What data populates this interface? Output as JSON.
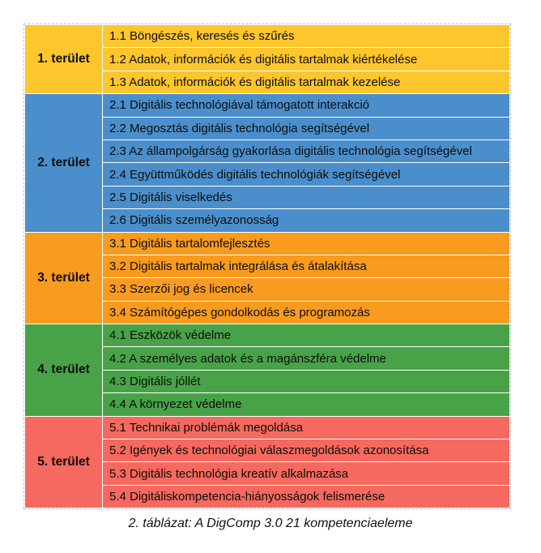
{
  "table": {
    "areas": [
      {
        "label": "1. terület",
        "color": "#FDC62D",
        "rows": [
          "1.1 Böngészés, keresés és szűrés",
          "1.2 Adatok, információk és digitális tartalmak kiértékelése",
          "1.3 Adatok, információk és digitális tartalmak kezelése"
        ]
      },
      {
        "label": "2. terület",
        "color": "#4A8FCC",
        "rows": [
          "2.1 Digitális technológiával támogatott interakció",
          "2.2 Megosztás digitális technológia segítségével",
          "2.3 Az állampolgárság gyakorlása digitális technológia segítségével",
          "2.4 Együttműködés digitális technológiák segítségével",
          "2.5 Digitális viselkedés",
          "2.6 Digitális személyazonosság"
        ]
      },
      {
        "label": "3. terület",
        "color": "#F89B1E",
        "rows": [
          "3.1 Digitális tartalomfejlesztés",
          "3.2 Digitális tartalmak integrálása és átalakítása",
          "3.3 Szerzői jog és licencek",
          "3.4 Számítógépes gondolkodás és programozás"
        ]
      },
      {
        "label": "4. terület",
        "color": "#48A348",
        "rows": [
          "4.1 Eszközök védelme",
          "4.2 A személyes adatok és a magánszféra védelme",
          "4.3 Digitális jóllét",
          "4.4 A környezet védelme"
        ]
      },
      {
        "label": "5. terület",
        "color": "#F5695E",
        "rows": [
          "5.1 Technikai problémák megoldása",
          "5.2 Igények és technológiai válaszmegoldások azonosítása",
          "5.3 Digitális technológia kreatív alkalmazása",
          "5.4 Digitáliskompetencia-hiányosságok felismerése"
        ]
      }
    ],
    "border_colors": {
      "cell_divider": "#ffffff",
      "outer": "#bdbdbd"
    },
    "text_color": "#0d0d0d"
  },
  "caption": "2. táblázat: A DigComp 3.0 21 kompetenciaeleme"
}
